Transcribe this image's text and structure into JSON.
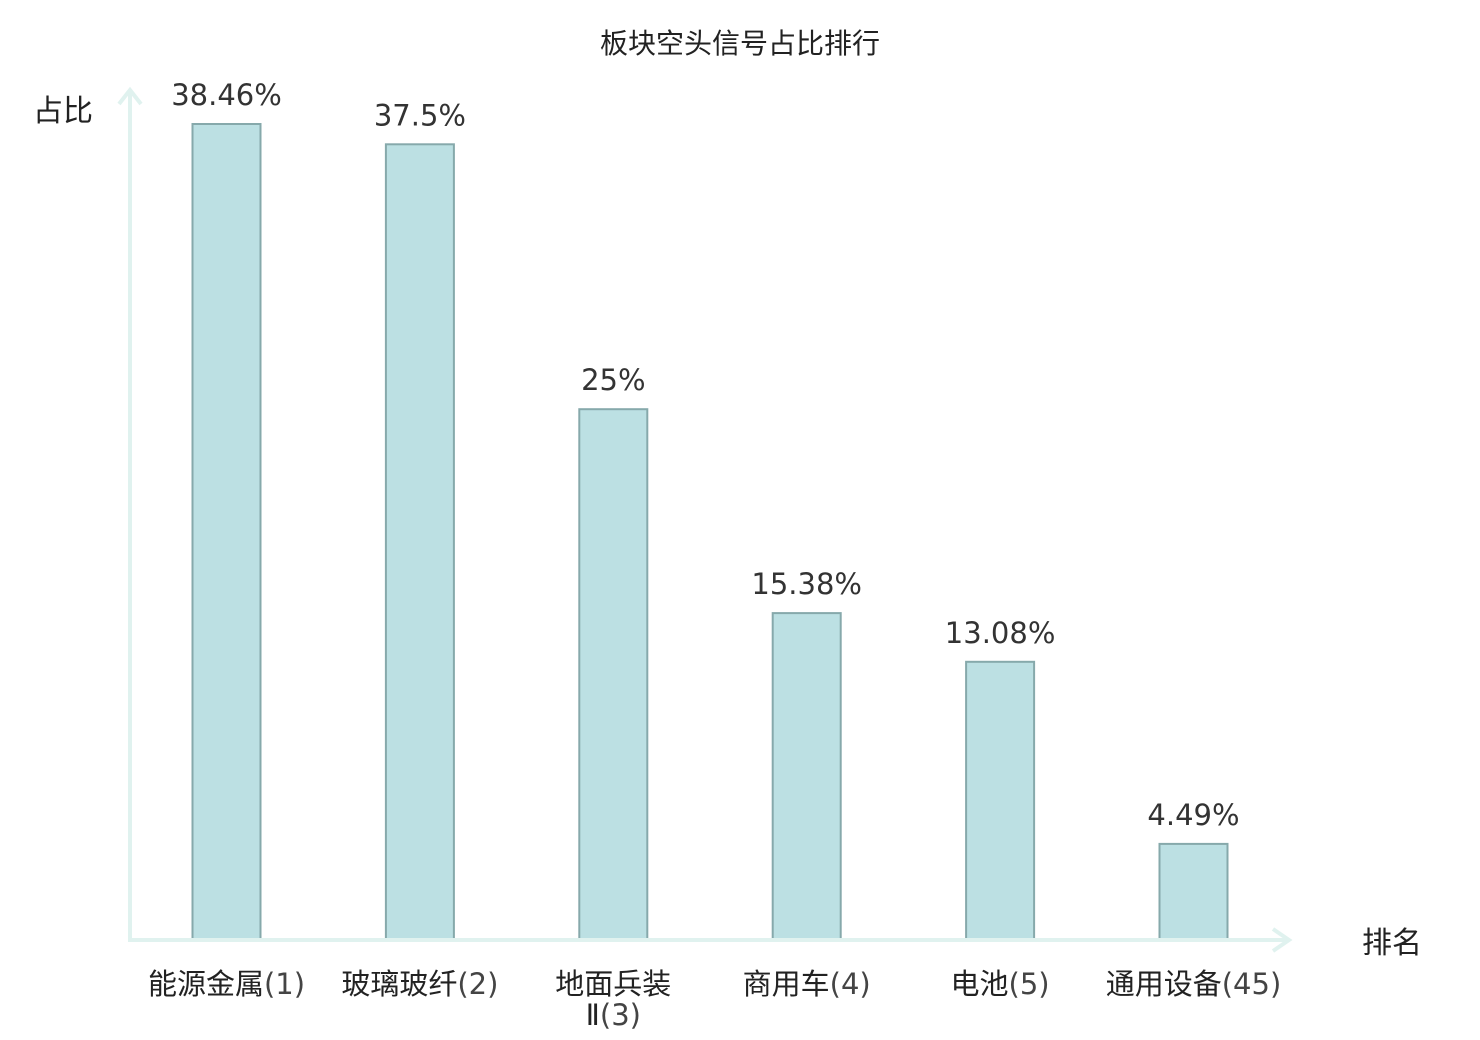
{
  "chart_data": {
    "type": "bar",
    "title": "板块空头信号占比排行",
    "ylabel": "占比",
    "xlabel": "排名",
    "ylim": [
      0,
      40
    ],
    "grid": false,
    "categories": [
      {
        "name": "能源金属",
        "rank": "(1)"
      },
      {
        "name": "玻璃玻纤",
        "rank": "(2)"
      },
      {
        "name": "地面兵装Ⅱ",
        "rank": "(3)"
      },
      {
        "name": "商用车",
        "rank": "(4)"
      },
      {
        "name": "电池",
        "rank": "(5)"
      },
      {
        "name": "通用设备",
        "rank": "(45)"
      }
    ],
    "values": [
      38.46,
      37.5,
      25,
      15.38,
      13.08,
      4.49
    ],
    "value_labels": [
      "38.46%",
      "37.5%",
      "25%",
      "15.38%",
      "13.08%",
      "4.49%"
    ],
    "highlight_index": 5,
    "colors": {
      "bar_fill": "#bce0e3",
      "bar_stroke": "#86a9ab",
      "axis": "#e0f2ef",
      "highlight_text": "#e02020",
      "text": "#222222"
    }
  }
}
